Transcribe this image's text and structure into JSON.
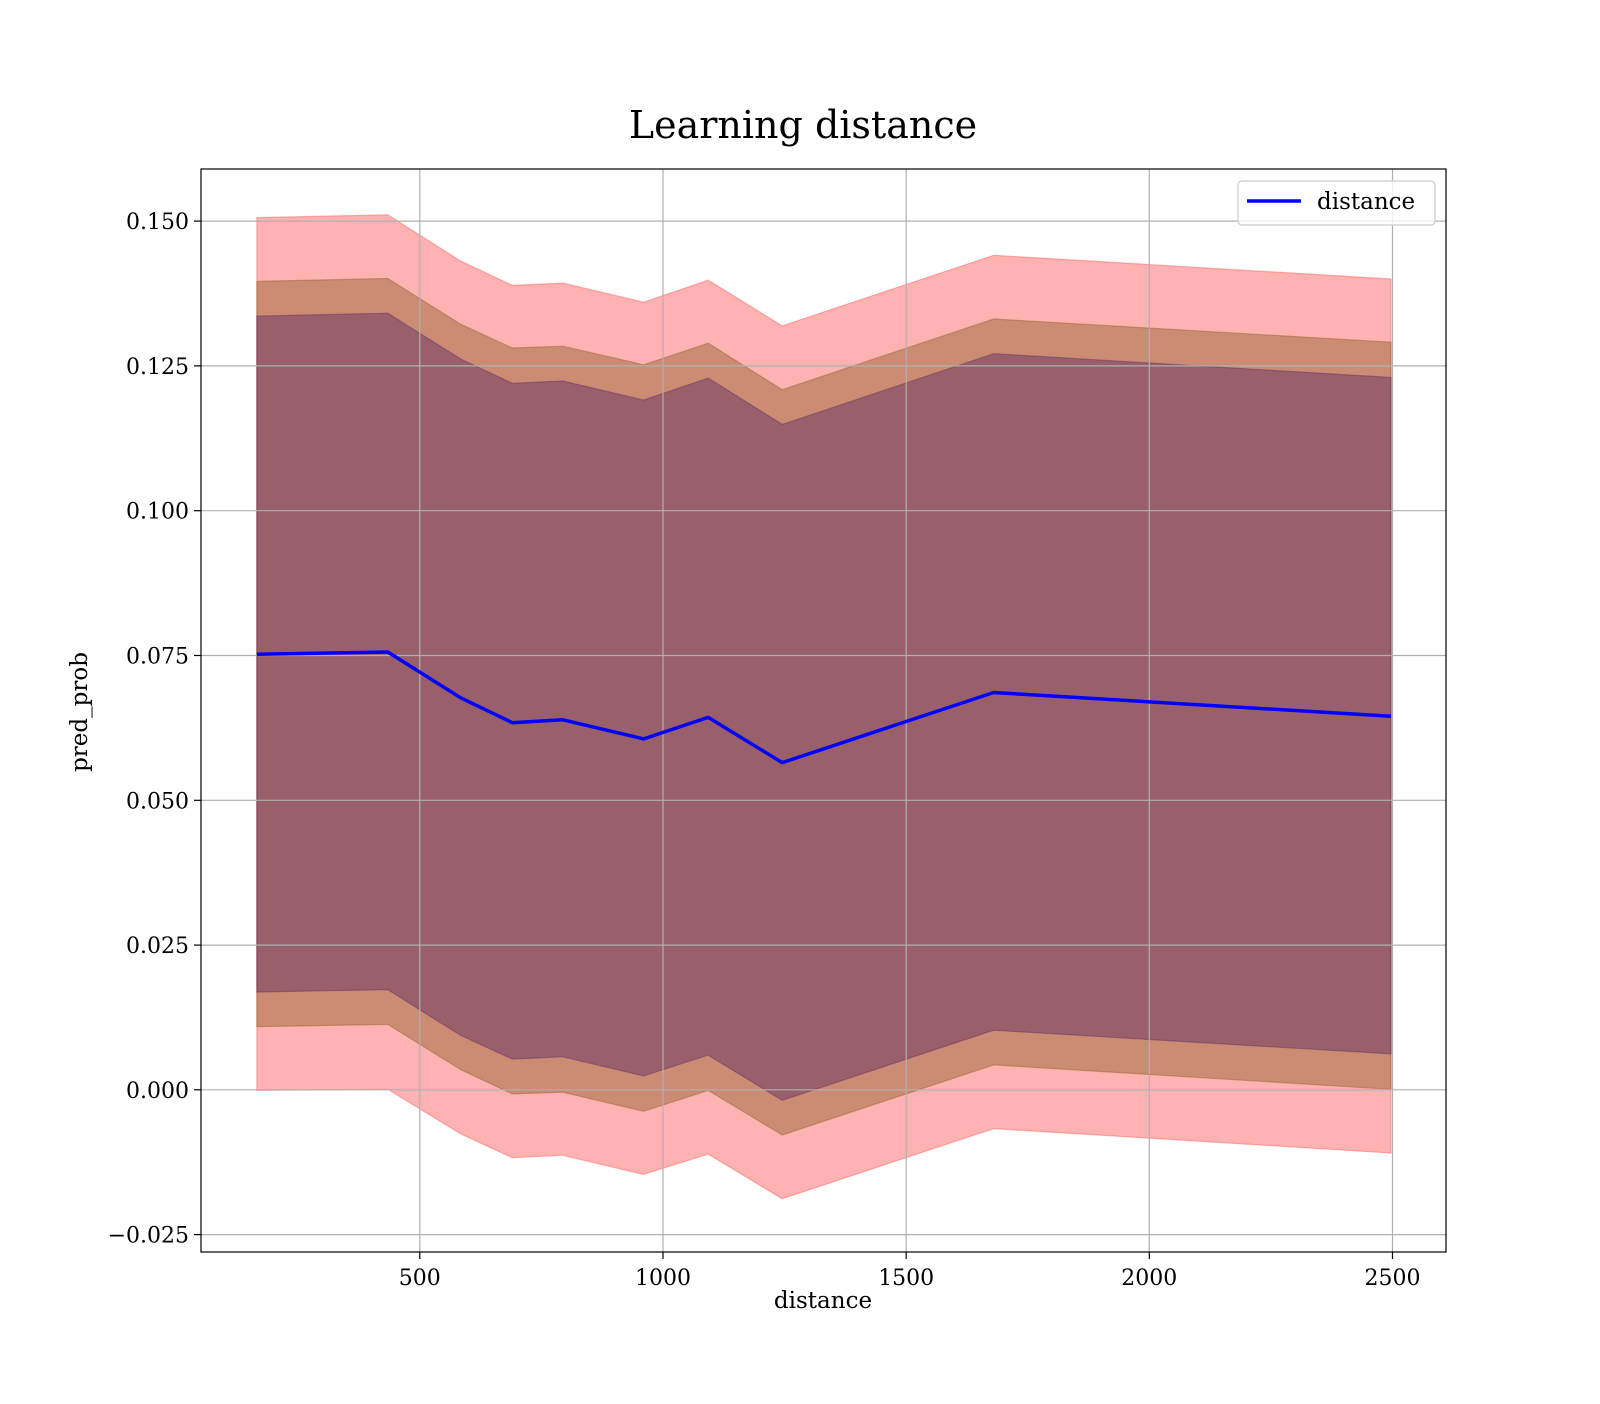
{
  "chart_data": {
    "type": "line",
    "title": "Learning distance",
    "xlabel": "distance",
    "ylabel": "pred_prob",
    "xlim": [
      50,
      2610
    ],
    "ylim": [
      -0.028,
      0.159
    ],
    "x_ticks": [
      500,
      1000,
      1500,
      2000,
      2500
    ],
    "x_tick_labels": [
      "500",
      "1000",
      "1500",
      "2000",
      "2500"
    ],
    "y_ticks": [
      -0.025,
      0.0,
      0.025,
      0.05,
      0.075,
      0.1,
      0.125,
      0.15
    ],
    "y_tick_labels": [
      "−0.025",
      "0.000",
      "0.025",
      "0.050",
      "0.075",
      "0.100",
      "0.125",
      "0.150"
    ],
    "grid": true,
    "legend_position": "top-right",
    "x": [
      165,
      434,
      584,
      690,
      794,
      960,
      1093,
      1245,
      1680,
      2497
    ],
    "series": [
      {
        "name": "distance",
        "color": "#0000ff",
        "values": [
          0.0752,
          0.0756,
          0.0677,
          0.0634,
          0.0639,
          0.0606,
          0.0643,
          0.0565,
          0.0686,
          0.0645
        ]
      }
    ],
    "bands": [
      {
        "color": "#ff6666",
        "lower": [
          -0.0001,
          0.0001,
          -0.0076,
          -0.0117,
          -0.0113,
          -0.0146,
          -0.0111,
          -0.0188,
          -0.0067,
          -0.0109
        ],
        "upper": [
          0.1506,
          0.1511,
          0.1431,
          0.1389,
          0.1393,
          0.136,
          0.1398,
          0.1319,
          0.1441,
          0.14
        ]
      },
      {
        "color": "#996633",
        "lower": [
          0.0109,
          0.0113,
          0.0035,
          -0.0007,
          -0.0004,
          -0.0037,
          -0.0001,
          -0.0078,
          0.0043,
          0.0001
        ],
        "upper": [
          0.1396,
          0.1401,
          0.1322,
          0.1281,
          0.1284,
          0.1252,
          0.1289,
          0.1209,
          0.1331,
          0.1291
        ]
      },
      {
        "color": "#663366",
        "lower": [
          0.0169,
          0.0173,
          0.0094,
          0.0053,
          0.0057,
          0.0024,
          0.006,
          -0.0018,
          0.0103,
          0.0062
        ],
        "upper": [
          0.1336,
          0.1341,
          0.1262,
          0.122,
          0.1224,
          0.1191,
          0.1229,
          0.1149,
          0.1271,
          0.123
        ]
      }
    ]
  }
}
